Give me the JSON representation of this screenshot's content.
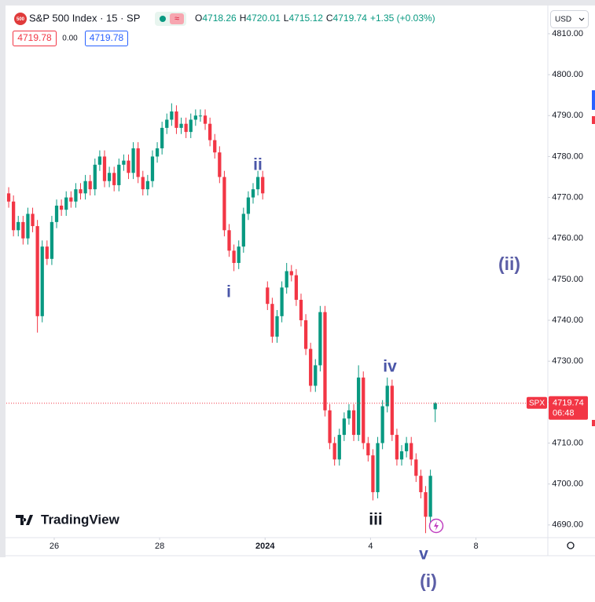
{
  "chart_data": {
    "type": "candlestick",
    "title": "S&P 500 Index · 15 · SP",
    "symbol_badge": "500",
    "currency": "USD",
    "ohlc_labels": [
      "O",
      "H",
      "L",
      "C"
    ],
    "change": "+1.35 (+0.03%)",
    "quote": [
      "4719.78",
      "0.00",
      "4719.78"
    ],
    "price_tag": "SPX",
    "countdown": "06:48",
    "watermark": "TradingView",
    "up_color": "#089981",
    "down_color": "#f23645",
    "grid": false,
    "annotations": [
      "ii",
      "i",
      "iv",
      "iii",
      "v",
      "(i)",
      "(ii)"
    ],
    "xlim": [
      0,
      113
    ],
    "xticks": [
      {
        "value": 10,
        "label": "26"
      },
      {
        "value": 32,
        "label": "28"
      },
      {
        "value": 54,
        "label": "2024"
      },
      {
        "value": 76,
        "label": "4"
      },
      {
        "value": 98,
        "label": "8"
      }
    ],
    "ylim": [
      4686.9,
      4816.7
    ],
    "yticks": [
      {
        "value": 4690,
        "label": "4690.00"
      },
      {
        "value": 4700,
        "label": "4700.00"
      },
      {
        "value": 4710,
        "label": "4710.00"
      },
      {
        "value": 4720,
        "label": "4720.00"
      },
      {
        "value": 4730,
        "label": "4730.00"
      },
      {
        "value": 4740,
        "label": "4740.00"
      },
      {
        "value": 4750,
        "label": "4750.00"
      },
      {
        "value": 4760,
        "label": "4760.00"
      },
      {
        "value": 4770,
        "label": "4770.00"
      },
      {
        "value": 4780,
        "label": "4780.00"
      },
      {
        "value": 4790,
        "label": "4790.00"
      },
      {
        "value": 4800,
        "label": "4800.00"
      },
      {
        "value": 4810,
        "label": "4810.00"
      }
    ],
    "open": [
      4771,
      4769,
      4762,
      4764,
      4760,
      4766,
      4763,
      4741,
      4758,
      4755,
      4764,
      4768,
      4767,
      4770,
      4769,
      4772,
      4771,
      4774,
      4772,
      4778,
      4780,
      4774,
      4776,
      4773,
      4778,
      4779,
      4776,
      4782,
      4775,
      4772,
      4774,
      4780,
      4782,
      4787,
      4789,
      4791,
      4787,
      4788,
      4786,
      4789,
      4790,
      4790,
      4788,
      4784,
      4781,
      4775,
      4762,
      4757,
      4754,
      4758,
      4766,
      4770,
      4772,
      4775,
      4748,
      4744,
      4736,
      4741,
      4748,
      4752,
      4751,
      4745,
      4740,
      4733,
      4724,
      4729,
      4742,
      4718,
      4710,
      4706,
      4712,
      4716,
      4718,
      4712,
      4726,
      4710,
      4707,
      4698,
      4710,
      4719,
      4724,
      4712,
      4706,
      4708,
      4710,
      4706,
      4702,
      4698,
      4692,
      4718.26
    ],
    "high": [
      4772.5,
      4770.5,
      4765.5,
      4765.5,
      4767.5,
      4767.5,
      4764.5,
      4759.5,
      4759.5,
      4765.5,
      4769.5,
      4769.5,
      4771.5,
      4771.5,
      4773.5,
      4773.5,
      4775.5,
      4775.5,
      4779.5,
      4781.5,
      4781.5,
      4777.5,
      4777.5,
      4779.5,
      4780.5,
      4780.5,
      4783.5,
      4783.5,
      4776.5,
      4775.5,
      4781.5,
      4783.5,
      4788.5,
      4790.5,
      4793,
      4792.5,
      4789.5,
      4789.5,
      4790.5,
      4791.5,
      4791.5,
      4791.5,
      4789.5,
      4785.5,
      4782.5,
      4776.5,
      4763.5,
      4758.5,
      4759.5,
      4767.5,
      4771.5,
      4773.5,
      4776.5,
      4776.5,
      4749.5,
      4745.5,
      4742.5,
      4749.5,
      4754,
      4753.5,
      4752.5,
      4746.5,
      4741.5,
      4734.5,
      4730.5,
      4743.5,
      4743.5,
      4719.5,
      4711.5,
      4713.5,
      4717.5,
      4719.5,
      4719.5,
      4729,
      4727.5,
      4711.5,
      4708.5,
      4711.5,
      4720.5,
      4726,
      4725.5,
      4713.5,
      4709.5,
      4711.5,
      4711.5,
      4707.5,
      4703.5,
      4699.5,
      4703.5,
      4720.01
    ],
    "low": [
      4767.5,
      4760.5,
      4760.5,
      4758.5,
      4758.5,
      4761.5,
      4737,
      4739.5,
      4753.5,
      4753.5,
      4762.5,
      4765.5,
      4765.5,
      4767.5,
      4767.5,
      4769.5,
      4769.5,
      4770.5,
      4770.5,
      4776.5,
      4772.5,
      4772.5,
      4771.5,
      4771.5,
      4776.5,
      4774.5,
      4774.5,
      4773.5,
      4770.5,
      4770.5,
      4772.5,
      4778.5,
      4780.5,
      4785.5,
      4787.5,
      4785.5,
      4785.5,
      4784.5,
      4784.5,
      4787.5,
      4788.5,
      4786.5,
      4782.5,
      4779.5,
      4773.5,
      4760.5,
      4755.5,
      4752,
      4752.5,
      4756.5,
      4764.5,
      4768.5,
      4770.5,
      4769.5,
      4742.5,
      4734.5,
      4734.5,
      4739.5,
      4746.5,
      4749.5,
      4743.5,
      4738.5,
      4731.5,
      4722.5,
      4722.5,
      4727.5,
      4716.5,
      4708.5,
      4704.5,
      4704.5,
      4710.5,
      4714.5,
      4710.5,
      4710.5,
      4708.5,
      4705.5,
      4696,
      4696.5,
      4708.5,
      4717.5,
      4710.5,
      4704.5,
      4704.5,
      4706.5,
      4704.5,
      4700.5,
      4696.5,
      4688,
      4690.5,
      4715.12
    ],
    "close": [
      4769,
      4762,
      4764,
      4760,
      4766,
      4763,
      4741,
      4758,
      4755,
      4764,
      4768,
      4767,
      4770,
      4769,
      4772,
      4771,
      4774,
      4772,
      4778,
      4780,
      4774,
      4776,
      4773,
      4778,
      4779,
      4776,
      4782,
      4775,
      4772,
      4774,
      4780,
      4782,
      4787,
      4789,
      4791,
      4787,
      4788,
      4786,
      4789,
      4790,
      4790,
      4788,
      4784,
      4781,
      4775,
      4762,
      4757,
      4754,
      4758,
      4766,
      4770,
      4772,
      4775,
      4771,
      4744,
      4736,
      4741,
      4748,
      4752,
      4751,
      4745,
      4740,
      4733,
      4724,
      4729,
      4742,
      4718,
      4710,
      4706,
      4712,
      4716,
      4718,
      4712,
      4726,
      4710,
      4707,
      4698,
      4710,
      4719,
      4724,
      4712,
      4706,
      4708,
      4710,
      4706,
      4702,
      4698,
      4692,
      4702,
      4719.74
    ]
  }
}
